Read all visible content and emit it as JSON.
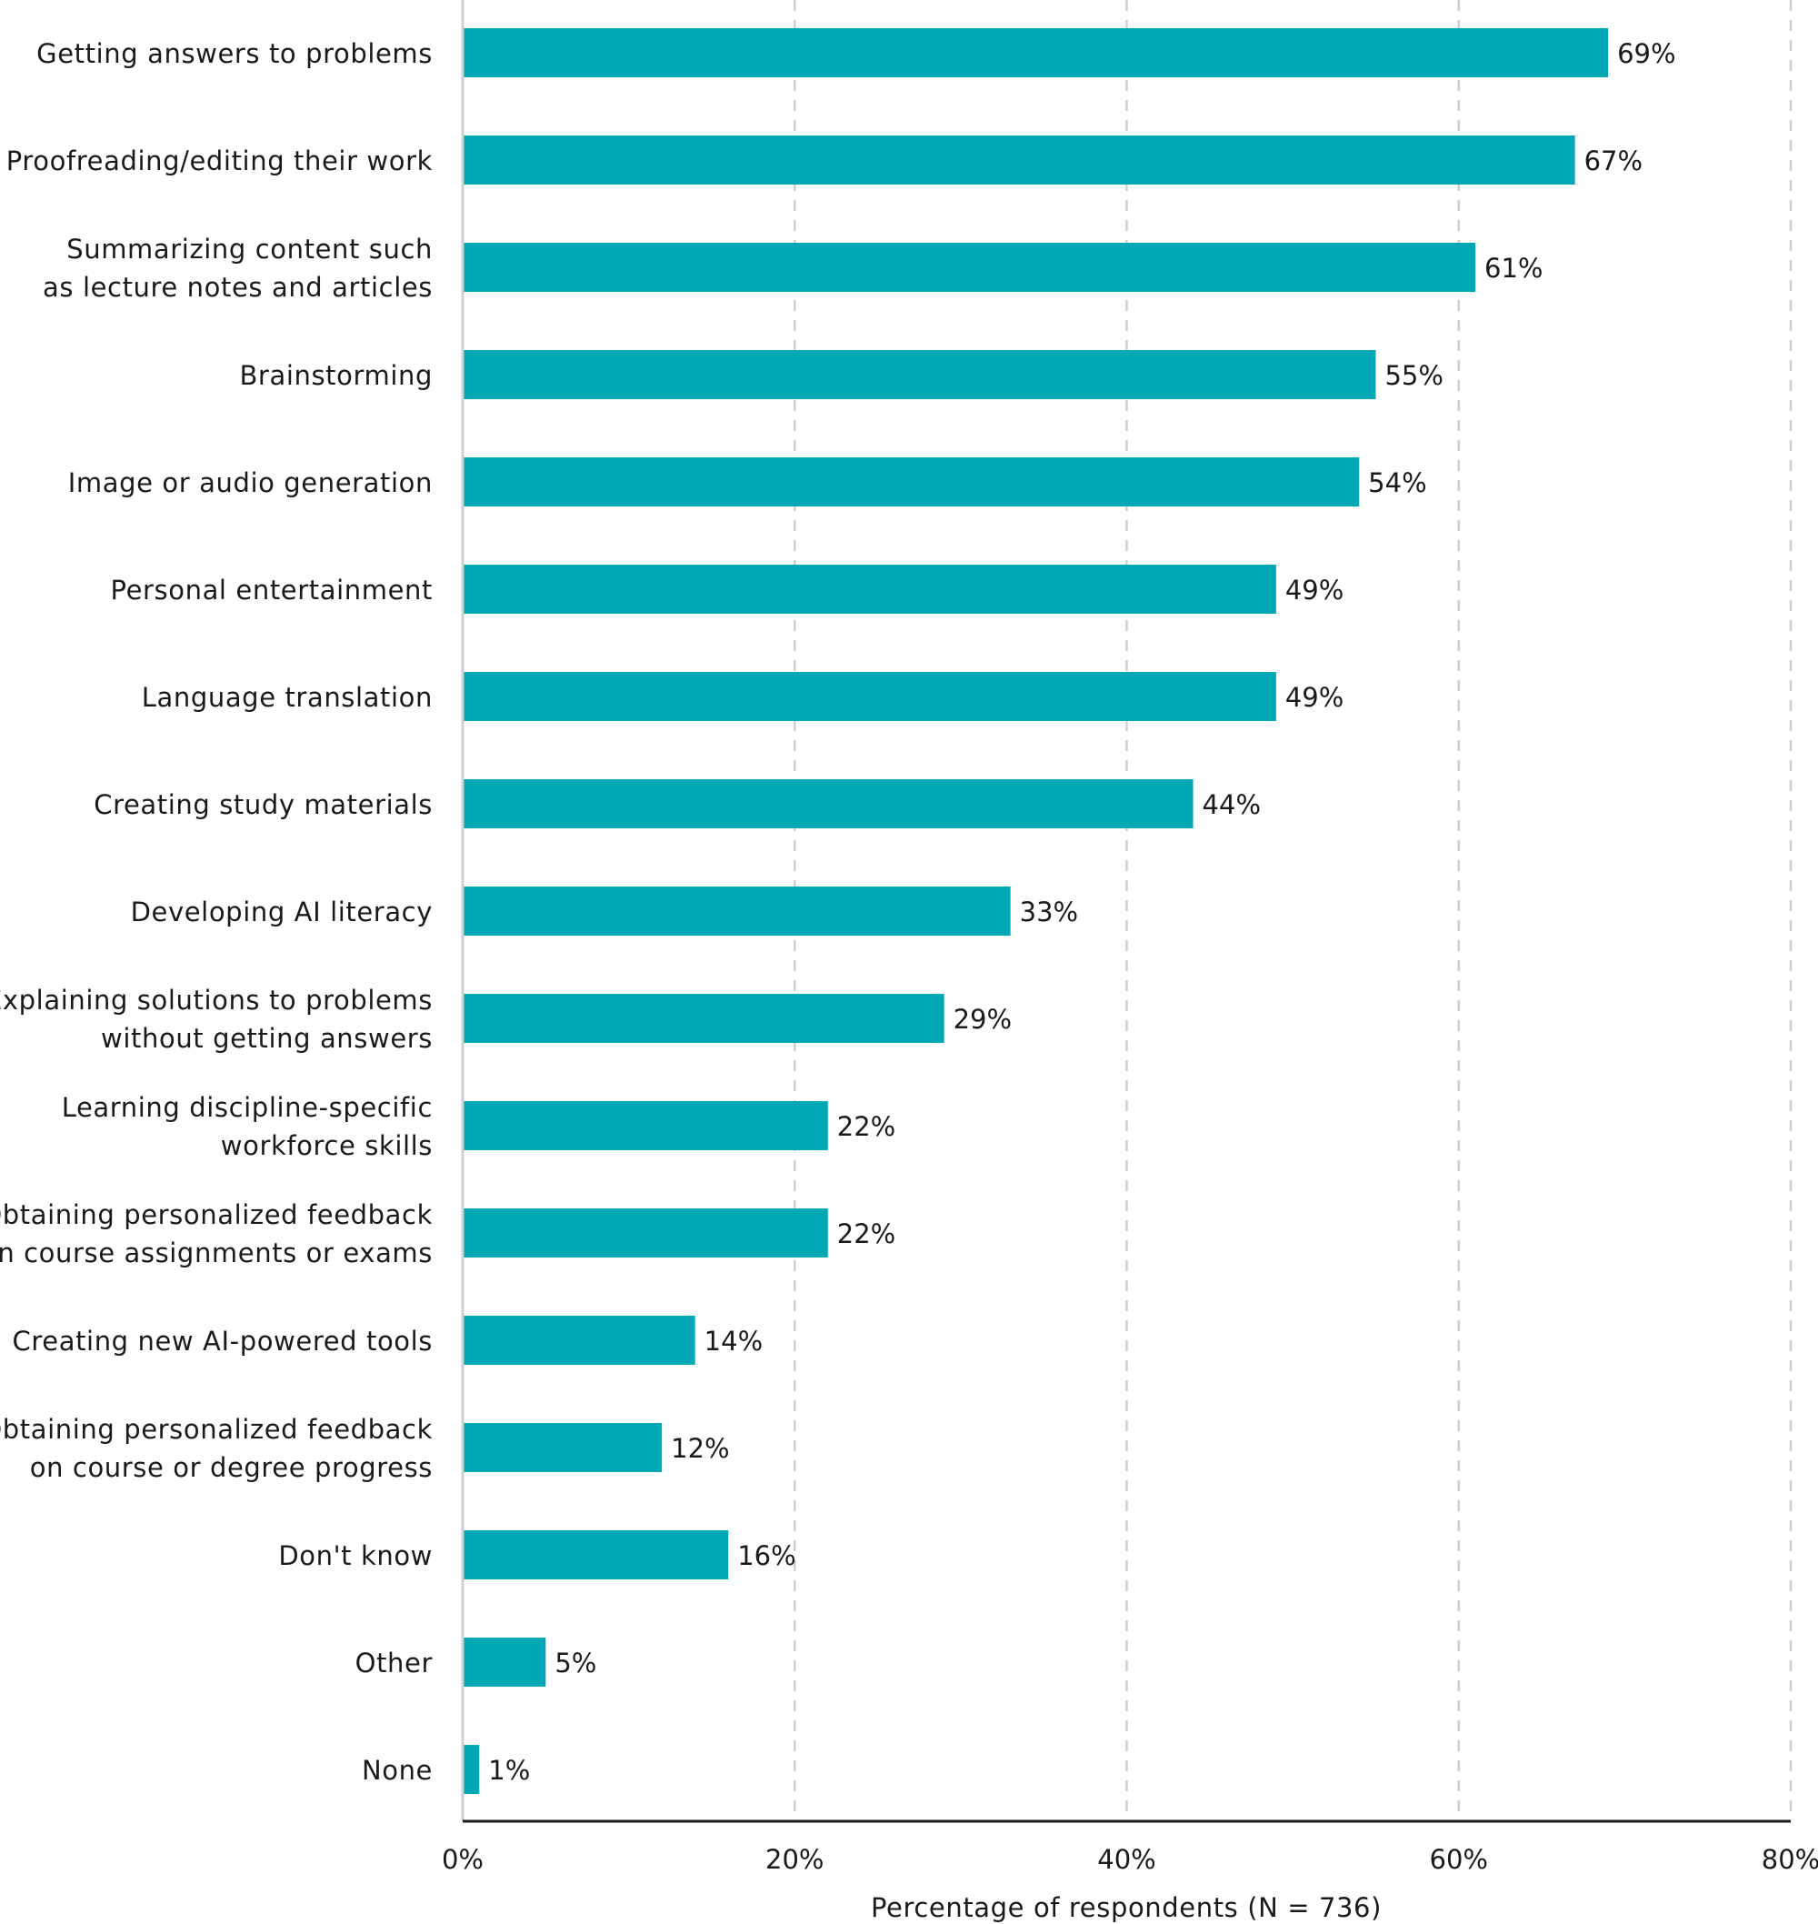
{
  "chart_data": {
    "type": "bar",
    "orientation": "horizontal",
    "categories": [
      "Getting answers to problems",
      "Proofreading/editing their work",
      "Summarizing content such\nas lecture notes and articles",
      "Brainstorming",
      "Image or audio generation",
      "Personal entertainment",
      "Language translation",
      "Creating study materials",
      "Developing AI literacy",
      "Explaining solutions to problems\nwithout getting answers",
      "Learning discipline-specific\nworkforce skills",
      "Obtaining personalized feedback\non course assignments or exams",
      "Creating new AI-powered tools",
      "Obtaining personalized feedback\non course or degree progress",
      "Don't know",
      "Other",
      "None"
    ],
    "values": [
      69,
      67,
      61,
      55,
      54,
      49,
      49,
      44,
      33,
      29,
      22,
      22,
      14,
      12,
      16,
      5,
      1
    ],
    "value_labels": [
      "69%",
      "67%",
      "61%",
      "55%",
      "54%",
      "49%",
      "49%",
      "44%",
      "33%",
      "29%",
      "22%",
      "22%",
      "14%",
      "12%",
      "16%",
      "5%",
      "1%"
    ],
    "xlim": [
      0,
      80
    ],
    "xticks": [
      0,
      20,
      40,
      60,
      80
    ],
    "xtick_labels": [
      "0%",
      "20%",
      "40%",
      "60%",
      "80%"
    ],
    "xlabel": "Percentage of respondents (N = 736)",
    "ylabel": "",
    "title": "",
    "grid": "vertical dashed",
    "legend": "none",
    "bar_color": "#00a8b5"
  }
}
